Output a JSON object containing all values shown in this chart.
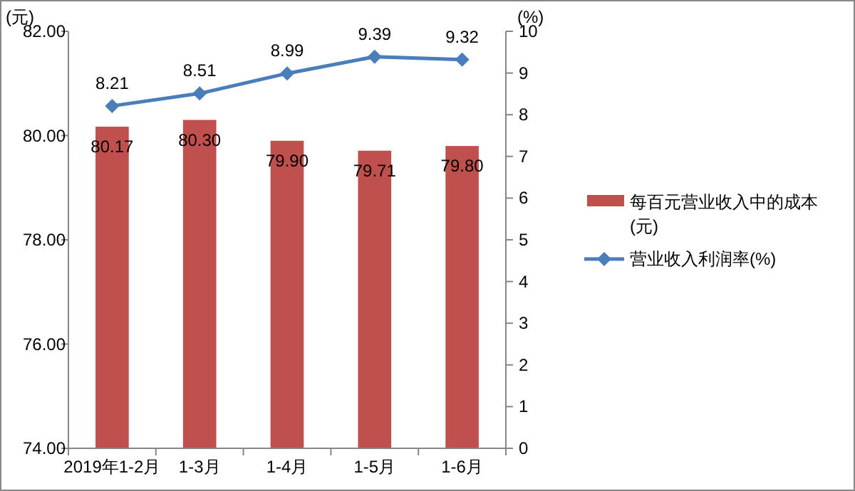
{
  "chart_data": {
    "type": "bar",
    "ylabel": "(元)",
    "y2label": "(%)",
    "categories": [
      "2019年1-2月",
      "1-3月",
      "1-4月",
      "1-5月",
      "1-6月"
    ],
    "series": [
      {
        "name": "每百元营业收入中的成本(元)",
        "color": "#c0504d",
        "values": [
          80.17,
          80.3,
          79.9,
          79.71,
          79.8
        ],
        "value_labels": [
          "80.17",
          "80.30",
          "79.90",
          "79.71",
          "79.80"
        ]
      },
      {
        "name": "营业收入利润率(%)",
        "type": "line",
        "axis": "y2",
        "color": "#4a7ebb",
        "marker": "diamond",
        "values": [
          8.21,
          8.51,
          8.99,
          9.39,
          9.32
        ]
      }
    ],
    "ylim": [
      74,
      82
    ],
    "yticks": [
      {
        "value": 74,
        "label": "74.00"
      },
      {
        "value": 76,
        "label": "76.00"
      },
      {
        "value": 78,
        "label": "78.00"
      },
      {
        "value": 80,
        "label": "80.00"
      },
      {
        "value": 82,
        "label": "82.00"
      }
    ],
    "y2lim": [
      0,
      10
    ],
    "y2ticks": [
      0,
      1,
      2,
      3,
      4,
      5,
      6,
      7,
      8,
      9,
      10
    ],
    "data_labels": true,
    "legend": "right",
    "grid": false
  }
}
